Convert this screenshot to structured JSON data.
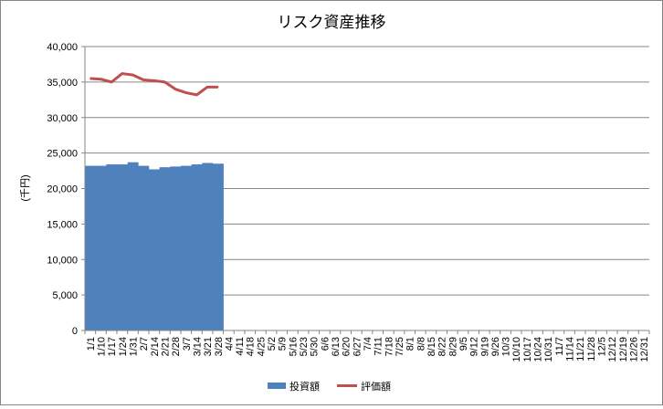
{
  "chart_data": {
    "type": "bar+line",
    "title": "リスク資産推移",
    "ylabel": "(千円)",
    "ylim": [
      0,
      40000
    ],
    "yticks": [
      0,
      5000,
      10000,
      15000,
      20000,
      25000,
      30000,
      35000,
      40000
    ],
    "ytick_labels": [
      "0",
      "5,000",
      "10,000",
      "15,000",
      "20,000",
      "25,000",
      "30,000",
      "35,000",
      "40,000"
    ],
    "grid": "horizontal",
    "legend_position": "bottom",
    "categories": [
      "1/1",
      "1/10",
      "1/17",
      "1/24",
      "1/31",
      "2/7",
      "2/14",
      "2/21",
      "2/28",
      "3/7",
      "3/14",
      "3/21",
      "3/28",
      "4/4",
      "4/11",
      "4/18",
      "4/25",
      "5/2",
      "5/9",
      "5/16",
      "5/23",
      "5/30",
      "6/6",
      "6/13",
      "6/20",
      "6/27",
      "7/4",
      "7/11",
      "7/18",
      "7/25",
      "8/1",
      "8/8",
      "8/15",
      "8/22",
      "8/29",
      "9/5",
      "9/12",
      "9/19",
      "9/26",
      "10/3",
      "10/10",
      "10/17",
      "10/24",
      "10/31",
      "11/7",
      "11/14",
      "11/21",
      "11/28",
      "12/5",
      "12/12",
      "12/19",
      "12/26",
      "12/31"
    ],
    "series": [
      {
        "name": "投資額",
        "kind": "bar",
        "color": "#4F81BD",
        "values": [
          23200,
          23200,
          23400,
          23400,
          23700,
          23200,
          22700,
          23000,
          23100,
          23200,
          23400,
          23600,
          23500,
          null,
          null,
          null,
          null,
          null,
          null,
          null,
          null,
          null,
          null,
          null,
          null,
          null,
          null,
          null,
          null,
          null,
          null,
          null,
          null,
          null,
          null,
          null,
          null,
          null,
          null,
          null,
          null,
          null,
          null,
          null,
          null,
          null,
          null,
          null,
          null,
          null,
          null,
          null,
          null
        ]
      },
      {
        "name": "評価額",
        "kind": "line",
        "color": "#C0504D",
        "values": [
          35500,
          35400,
          35000,
          36200,
          36000,
          35300,
          35200,
          35000,
          34000,
          33500,
          33200,
          34300,
          34300,
          null,
          null,
          null,
          null,
          null,
          null,
          null,
          null,
          null,
          null,
          null,
          null,
          null,
          null,
          null,
          null,
          null,
          null,
          null,
          null,
          null,
          null,
          null,
          null,
          null,
          null,
          null,
          null,
          null,
          null,
          null,
          null,
          null,
          null,
          null,
          null,
          null,
          null,
          null,
          null
        ]
      }
    ]
  }
}
